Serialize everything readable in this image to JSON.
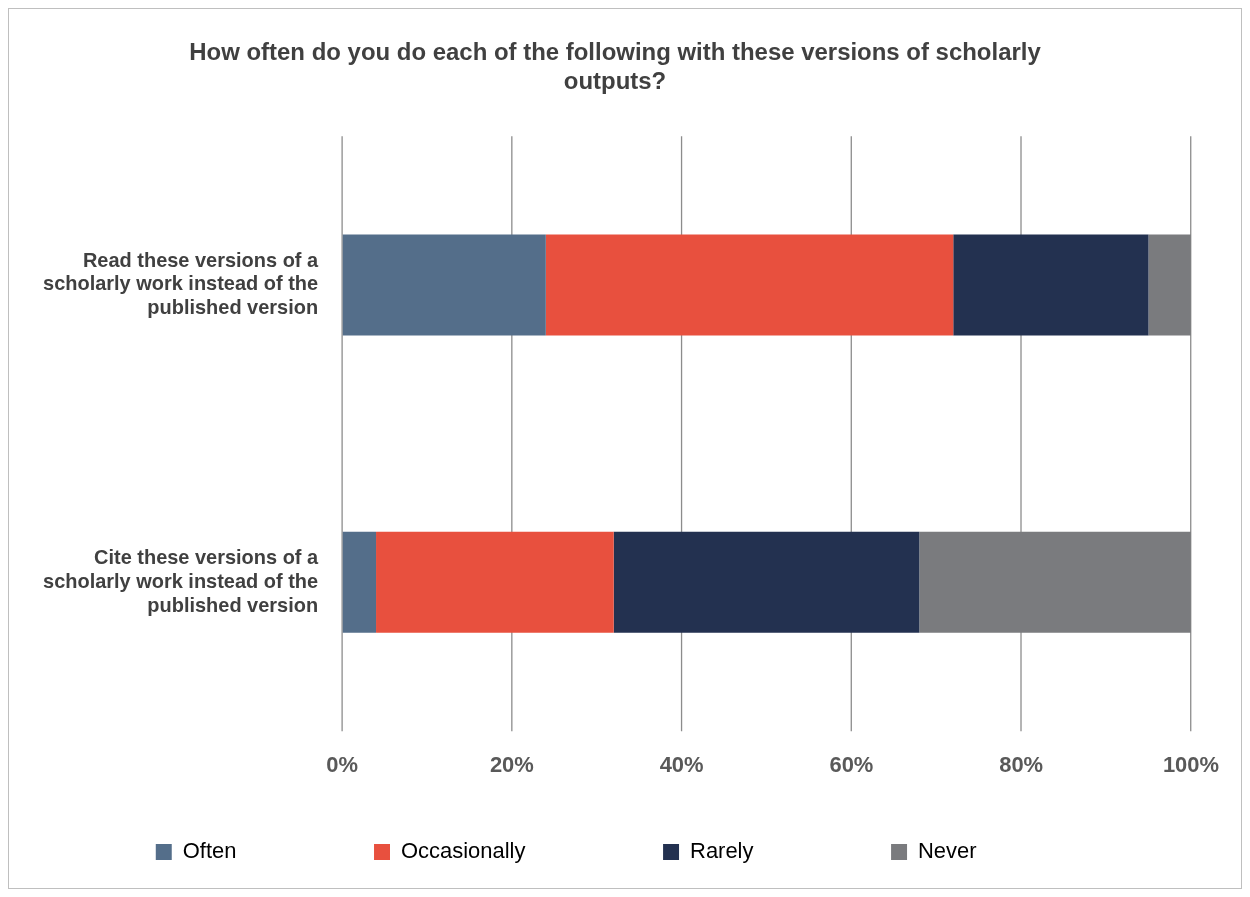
{
  "chart_data": {
    "type": "bar",
    "orientation": "horizontal",
    "stacked": true,
    "title": "How often do you do each of the following with these versions of scholarly outputs?",
    "categories": [
      "Read these versions of a scholarly work instead of the published version",
      "Cite these versions of a scholarly work instead of the published version"
    ],
    "series": [
      {
        "name": "Often",
        "color": "#546e8a",
        "values": [
          24,
          4
        ]
      },
      {
        "name": "Occasionally",
        "color": "#e8503e",
        "values": [
          48,
          28
        ]
      },
      {
        "name": "Rarely",
        "color": "#233150",
        "values": [
          23,
          36
        ]
      },
      {
        "name": "Never",
        "color": "#7a7b7e",
        "values": [
          5,
          32
        ]
      }
    ],
    "xlim": [
      0,
      100
    ],
    "xticks": [
      {
        "value": 0,
        "label": "0%"
      },
      {
        "value": 20,
        "label": "20%"
      },
      {
        "value": 40,
        "label": "40%"
      },
      {
        "value": 60,
        "label": "60%"
      },
      {
        "value": 80,
        "label": "80%"
      },
      {
        "value": 100,
        "label": "100%"
      }
    ],
    "grid": "x",
    "legend": "bottom"
  }
}
